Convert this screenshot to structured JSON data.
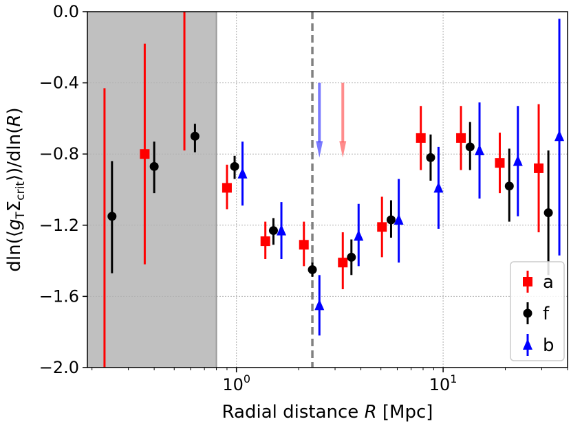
{
  "chart_data": {
    "type": "scatter",
    "xlabel": "Radial distance R [Mpc]",
    "xlabel_parts": {
      "pre": "Radial distance ",
      "var": "R",
      "post": " [Mpc]"
    },
    "ylabel": "dln(⟨gTΣcrit⟩)/dln(R)",
    "ylabel_parts": {
      "a": "dln(⟨",
      "g": "g",
      "gsub": "T",
      "sig": "Σ",
      "sigsub": "crit",
      "b": "⟩)/dln(",
      "r": "R",
      "c": ")"
    },
    "x_scale": "log",
    "xlim": [
      0.19,
      40
    ],
    "ylim": [
      -2.0,
      0.0
    ],
    "y_ticks": [
      0.0,
      -0.4,
      -0.8,
      -1.2,
      -1.6,
      -2.0
    ],
    "y_tick_labels": [
      "0.0",
      "−0.4",
      "−0.8",
      "−1.2",
      "−1.6",
      "−2.0"
    ],
    "x_ticks": [
      1,
      10
    ],
    "x_tick_labels": [
      {
        "base": "10",
        "exp": "0"
      },
      {
        "base": "10",
        "exp": "1"
      }
    ],
    "grid": true,
    "shaded_region": {
      "x": [
        0.19,
        0.8
      ],
      "color": "#c0c0c0"
    },
    "vertical_line": {
      "x": 2.33,
      "style": "dashed",
      "color": "#808080"
    },
    "arrows": [
      {
        "x": 2.52,
        "y_from": -0.4,
        "y_to": -0.82,
        "color": "#4d4dff"
      },
      {
        "x": 3.27,
        "y_from": -0.4,
        "y_to": -0.82,
        "color": "#ff6666"
      }
    ],
    "legend_position": "lower right",
    "series": [
      {
        "name": "a",
        "color": "#ff0000",
        "marker": "square",
        "points": [
          {
            "x": 0.23,
            "y": null,
            "ylo": -2.0,
            "yhi": -0.43
          },
          {
            "x": 0.36,
            "y": -0.8,
            "ylo": -1.42,
            "yhi": -0.18
          },
          {
            "x": 0.56,
            "y": null,
            "ylo": -0.78,
            "yhi": 0.0
          },
          {
            "x": 0.9,
            "y": -0.99,
            "ylo": -1.11,
            "yhi": -0.86
          },
          {
            "x": 1.38,
            "y": -1.29,
            "ylo": -1.39,
            "yhi": -1.18
          },
          {
            "x": 2.12,
            "y": -1.31,
            "ylo": -1.43,
            "yhi": -1.18
          },
          {
            "x": 3.27,
            "y": -1.41,
            "ylo": -1.56,
            "yhi": -1.24
          },
          {
            "x": 5.06,
            "y": -1.21,
            "ylo": -1.38,
            "yhi": -1.04
          },
          {
            "x": 7.8,
            "y": -0.71,
            "ylo": -0.89,
            "yhi": -0.53
          },
          {
            "x": 12.2,
            "y": -0.71,
            "ylo": -0.89,
            "yhi": -0.53
          },
          {
            "x": 18.8,
            "y": -0.85,
            "ylo": -1.02,
            "yhi": -0.68
          },
          {
            "x": 29.0,
            "y": -0.88,
            "ylo": -1.24,
            "yhi": -0.52
          }
        ]
      },
      {
        "name": "f",
        "color": "#000000",
        "marker": "circle",
        "points": [
          {
            "x": 0.25,
            "y": -1.15,
            "ylo": -1.47,
            "yhi": -0.84
          },
          {
            "x": 0.4,
            "y": -0.87,
            "ylo": -1.02,
            "yhi": -0.73
          },
          {
            "x": 0.63,
            "y": -0.7,
            "ylo": -0.79,
            "yhi": -0.63
          },
          {
            "x": 0.98,
            "y": -0.87,
            "ylo": -0.94,
            "yhi": -0.81
          },
          {
            "x": 1.51,
            "y": -1.23,
            "ylo": -1.31,
            "yhi": -1.16
          },
          {
            "x": 2.33,
            "y": -1.45,
            "ylo": -1.49,
            "yhi": -1.41
          },
          {
            "x": 3.6,
            "y": -1.38,
            "ylo": -1.48,
            "yhi": -1.28
          },
          {
            "x": 5.6,
            "y": -1.17,
            "ylo": -1.27,
            "yhi": -1.06
          },
          {
            "x": 8.7,
            "y": -0.82,
            "ylo": -0.95,
            "yhi": -0.69
          },
          {
            "x": 13.5,
            "y": -0.76,
            "ylo": -0.89,
            "yhi": -0.62
          },
          {
            "x": 20.9,
            "y": -0.98,
            "ylo": -1.18,
            "yhi": -0.77
          },
          {
            "x": 32.3,
            "y": -1.13,
            "ylo": -1.48,
            "yhi": -0.78
          }
        ]
      },
      {
        "name": "b",
        "color": "#0000ff",
        "marker": "triangle",
        "points": [
          {
            "x": 1.07,
            "y": -0.91,
            "ylo": -1.09,
            "yhi": -0.73
          },
          {
            "x": 1.65,
            "y": -1.23,
            "ylo": -1.39,
            "yhi": -1.07
          },
          {
            "x": 2.52,
            "y": -1.65,
            "ylo": -1.82,
            "yhi": -1.48
          },
          {
            "x": 3.9,
            "y": -1.26,
            "ylo": -1.43,
            "yhi": -1.08
          },
          {
            "x": 6.1,
            "y": -1.17,
            "ylo": -1.41,
            "yhi": -0.94
          },
          {
            "x": 9.5,
            "y": -0.99,
            "ylo": -1.22,
            "yhi": -0.76
          },
          {
            "x": 15.0,
            "y": -0.78,
            "ylo": -1.05,
            "yhi": -0.51
          },
          {
            "x": 23.0,
            "y": -0.84,
            "ylo": -1.15,
            "yhi": -0.53
          },
          {
            "x": 36.5,
            "y": -0.7,
            "ylo": -1.37,
            "yhi": -0.04
          }
        ]
      }
    ]
  }
}
